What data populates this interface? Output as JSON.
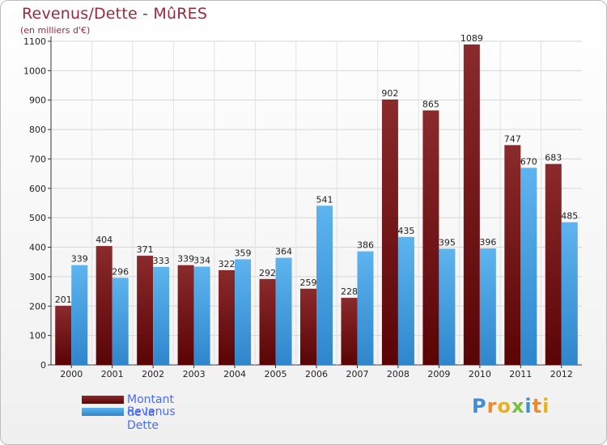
{
  "header": {
    "title": "Revenus/Dette - MûRES",
    "subtitle": "(en milliers d'€)"
  },
  "legend": [
    {
      "label": "Montant de la Dette",
      "color": "#6b0e10"
    },
    {
      "label": "Revenus",
      "color": "#3f9fe0"
    }
  ],
  "logo": {
    "text": "Proxiti"
  },
  "chart_data": {
    "type": "bar",
    "title": "Revenus/Dette - MûRES",
    "subtitle": "(en milliers d'€)",
    "xlabel": "",
    "ylabel": "",
    "categories": [
      "2000",
      "2001",
      "2002",
      "2003",
      "2004",
      "2005",
      "2006",
      "2007",
      "2008",
      "2009",
      "2010",
      "2011",
      "2012"
    ],
    "series": [
      {
        "name": "Montant de la Dette",
        "color": "#6b0e10",
        "values": [
          201,
          404,
          371,
          339,
          322,
          292,
          259,
          228,
          902,
          865,
          1089,
          747,
          683
        ]
      },
      {
        "name": "Revenus",
        "color": "#3f9fe0",
        "values": [
          339,
          296,
          333,
          334,
          359,
          364,
          541,
          386,
          435,
          395,
          396,
          670,
          485
        ]
      }
    ],
    "ylim": [
      0,
      1100
    ],
    "yticks": [
      0,
      100,
      200,
      300,
      400,
      500,
      600,
      700,
      800,
      900,
      1000,
      1100
    ],
    "grid": true,
    "legend_position": "bottom-left"
  }
}
